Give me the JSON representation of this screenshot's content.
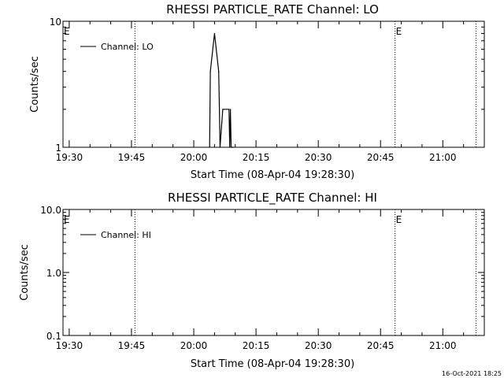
{
  "footer": {
    "timestamp": "16-Oct-2021 18:25"
  },
  "chart_data": [
    {
      "type": "line",
      "title": "RHESSI PARTICLE_RATE Channel: LO",
      "xlabel": "Start Time (08-Apr-04 19:28:30)",
      "ylabel": "Counts/sec",
      "y_scale": "log",
      "ylim": [
        1,
        10
      ],
      "y_ticks": [
        {
          "value": 1,
          "label": "1"
        },
        {
          "value": 10,
          "label": "10"
        }
      ],
      "xlim": [
        "19:28:30",
        "21:10:00"
      ],
      "x_ticks": [
        "19:30",
        "19:45",
        "20:00",
        "20:15",
        "20:30",
        "20:45",
        "21:00"
      ],
      "grid": false,
      "legend": {
        "position": "top-left",
        "entries": [
          "Channel: LO"
        ]
      },
      "markers": [
        {
          "time": "19:28:30",
          "label": "E"
        },
        {
          "time": "19:45:50",
          "label": ""
        },
        {
          "time": "20:48:30",
          "label": "E"
        },
        {
          "time": "21:08:00",
          "label": ""
        }
      ],
      "series": [
        {
          "name": "Channel: LO",
          "x": [
            "20:03:50",
            "20:04:00",
            "20:05:00",
            "20:06:00",
            "20:06:10",
            "20:06:20",
            "20:07:00",
            "20:08:30",
            "20:08:40",
            "20:08:50",
            "20:09:00",
            "20:09:20",
            "20:09:30"
          ],
          "y": [
            1,
            4.0,
            8.0,
            4.0,
            2.2,
            1,
            2.0,
            2.0,
            1,
            2.0,
            1,
            1,
            1
          ]
        }
      ]
    },
    {
      "type": "line",
      "title": "RHESSI PARTICLE_RATE Channel: HI",
      "xlabel": "Start Time (08-Apr-04 19:28:30)",
      "ylabel": "Counts/sec",
      "y_scale": "log",
      "ylim": [
        0.1,
        10
      ],
      "y_ticks": [
        {
          "value": 0.1,
          "label": "0.1"
        },
        {
          "value": 1,
          "label": "1.0"
        },
        {
          "value": 10,
          "label": "10.0"
        }
      ],
      "xlim": [
        "19:28:30",
        "21:10:00"
      ],
      "x_ticks": [
        "19:30",
        "19:45",
        "20:00",
        "20:15",
        "20:30",
        "20:45",
        "21:00"
      ],
      "grid": false,
      "legend": {
        "position": "top-left",
        "entries": [
          "Channel: HI"
        ]
      },
      "markers": [
        {
          "time": "19:28:30",
          "label": "E"
        },
        {
          "time": "19:45:50",
          "label": ""
        },
        {
          "time": "20:48:30",
          "label": "E"
        },
        {
          "time": "21:08:00",
          "label": ""
        }
      ],
      "series": [
        {
          "name": "Channel: HI",
          "x": [],
          "y": []
        }
      ]
    }
  ]
}
